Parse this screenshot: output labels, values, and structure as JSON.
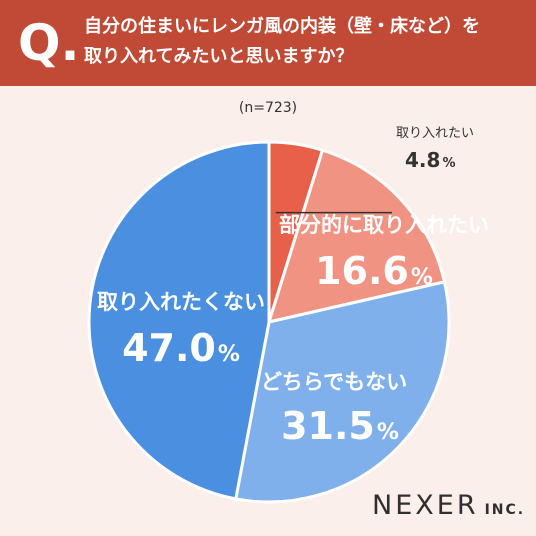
{
  "header": {
    "q_mark": "Q.",
    "question": "自分の住まいにレンガ風の内装（壁・床など）を\n取り入れてみたいと思いますか？"
  },
  "sample_size": "(n=723)",
  "logo": {
    "main": "NEXER",
    "suffix": "INC."
  },
  "colors": {
    "header_bg": "#c04a35",
    "background": "#fbefec",
    "slice_1": "#e8604a",
    "slice_2": "#f09383",
    "slice_3": "#7fb0ec",
    "slice_4": "#4a8fe0"
  },
  "chart_data": {
    "type": "pie",
    "start": "12 o'clock",
    "direction": "clockwise",
    "slices": [
      {
        "label": "取り入れたい",
        "value": 4.8,
        "display": "4.8",
        "unit": "%",
        "color": "#e8604a"
      },
      {
        "label": "部分的に取り入れたい",
        "value": 16.6,
        "display": "16.6",
        "unit": "%",
        "color": "#f09383"
      },
      {
        "label": "どちらでもない",
        "value": 31.5,
        "display": "31.5",
        "unit": "%",
        "color": "#7fb0ec"
      },
      {
        "label": "取り入れたくない",
        "value": 47.0,
        "display": "47.0",
        "unit": "%",
        "color": "#4a8fe0"
      }
    ]
  }
}
